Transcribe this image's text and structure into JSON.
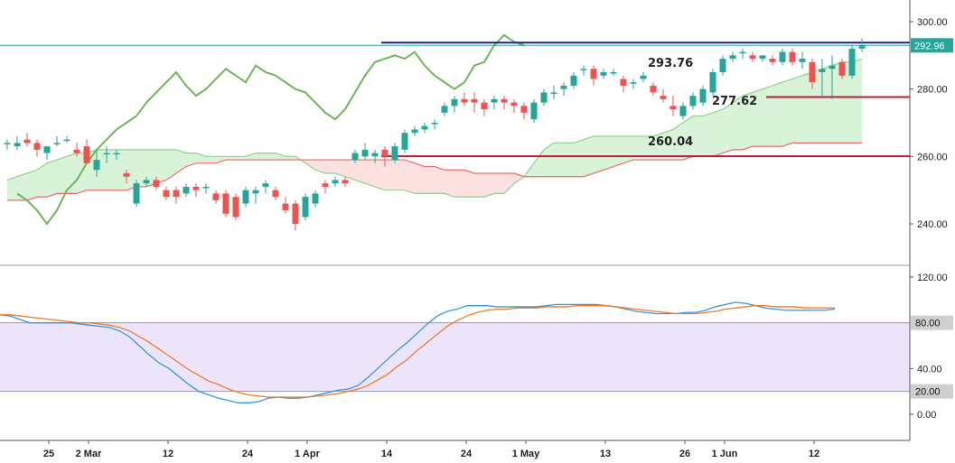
{
  "colors": {
    "up": "#26a69a",
    "down": "#ef5350",
    "leading_span_a": "#8fd18f",
    "leading_span_b": "#ef6b6b",
    "lagging_span": "#6fb55a",
    "cloud_bull": "#d8f3d8",
    "cloud_bear": "#fde0e0",
    "resistance": "#1a237e",
    "support": "#b71c3c",
    "price_tag": "#26a69a",
    "stoch_k": "#3399dd",
    "stoch_d": "#f07b2a",
    "stoch_band": "#ece4fb",
    "level_tag": "#cfcfcf"
  },
  "chart_data": [
    {
      "type": "candlestick",
      "title": "",
      "ylim": [
        230,
        305
      ],
      "yticks": [
        "300.00",
        "280.00",
        "260.00",
        "240.00"
      ],
      "ytick_values": [
        300,
        280,
        260,
        240
      ],
      "last_price_label": "292.96",
      "last_price": 292.96,
      "annotations": [
        {
          "label": "293.76",
          "value": 293.76
        },
        {
          "label": "277.62",
          "value": 277.62
        },
        {
          "label": "260.04",
          "value": 260.04
        }
      ],
      "x_labels": [
        {
          "label": "25",
          "index": 4
        },
        {
          "label": "2 Mar",
          "index": 8
        },
        {
          "label": "12",
          "index": 16
        },
        {
          "label": "24",
          "index": 24
        },
        {
          "label": "1 Apr",
          "index": 30
        },
        {
          "label": "14",
          "index": 38
        },
        {
          "label": "24",
          "index": 46
        },
        {
          "label": "1 May",
          "index": 52
        },
        {
          "label": "13",
          "index": 60
        },
        {
          "label": "26",
          "index": 68
        },
        {
          "label": "1 Jun",
          "index": 72
        },
        {
          "label": "12",
          "index": 81
        }
      ],
      "candles": [
        [
          264,
          265,
          262,
          264
        ],
        [
          263,
          266,
          262,
          264
        ],
        [
          265,
          267,
          263,
          264
        ],
        [
          264,
          265,
          260,
          262
        ],
        [
          261,
          263,
          259,
          263
        ],
        [
          264,
          266,
          263,
          264
        ],
        [
          265,
          266,
          264,
          265
        ],
        [
          262,
          264,
          260,
          261
        ],
        [
          263,
          265,
          258,
          258
        ],
        [
          256,
          262,
          254,
          259
        ],
        [
          261,
          263,
          258,
          261
        ],
        [
          261,
          262,
          259,
          261
        ],
        [
          255,
          256,
          252,
          254
        ],
        [
          246,
          253,
          245,
          252
        ],
        [
          252,
          254,
          251,
          253
        ],
        [
          253,
          254,
          250,
          251
        ],
        [
          250,
          251,
          247,
          248
        ],
        [
          250,
          251,
          246,
          248
        ],
        [
          249,
          252,
          248,
          251
        ],
        [
          251,
          252,
          248,
          250
        ],
        [
          251,
          252,
          249,
          251
        ],
        [
          249,
          250,
          246,
          247
        ],
        [
          249,
          250,
          242,
          243
        ],
        [
          248,
          249,
          241,
          242
        ],
        [
          246,
          251,
          245,
          250
        ],
        [
          249,
          251,
          246,
          250
        ],
        [
          251,
          253,
          249,
          252
        ],
        [
          250,
          251,
          247,
          248
        ],
        [
          246,
          248,
          243,
          244
        ],
        [
          246,
          247,
          238,
          240
        ],
        [
          242,
          249,
          241,
          248
        ],
        [
          246,
          250,
          245,
          249
        ],
        [
          252,
          253,
          249,
          251
        ],
        [
          252,
          254,
          251,
          253
        ],
        [
          253,
          254,
          251,
          252
        ],
        [
          259,
          262,
          258,
          261
        ],
        [
          260,
          264,
          259,
          262
        ],
        [
          260,
          262,
          258,
          261
        ],
        [
          262,
          263,
          257,
          260
        ],
        [
          259,
          264,
          258,
          263
        ],
        [
          262,
          268,
          261,
          267
        ],
        [
          267,
          269,
          266,
          268
        ],
        [
          268,
          270,
          267,
          269
        ],
        [
          270,
          271,
          268,
          270
        ],
        [
          273,
          276,
          272,
          275
        ],
        [
          275,
          278,
          273,
          277
        ],
        [
          277,
          279,
          275,
          276
        ],
        [
          277,
          279,
          273,
          276
        ],
        [
          276,
          277,
          272,
          274
        ],
        [
          276,
          278,
          274,
          277
        ],
        [
          277,
          278,
          274,
          276
        ],
        [
          276,
          277,
          273,
          275
        ],
        [
          275,
          276,
          271,
          273
        ],
        [
          271,
          277,
          270,
          276
        ],
        [
          276,
          280,
          275,
          279
        ],
        [
          279,
          281,
          277,
          279
        ],
        [
          280,
          282,
          278,
          281
        ],
        [
          281,
          285,
          280,
          284
        ],
        [
          286,
          287,
          284,
          286
        ],
        [
          286,
          287,
          281,
          283
        ],
        [
          284,
          286,
          283,
          285
        ],
        [
          285,
          286,
          284,
          285
        ],
        [
          283,
          284,
          279,
          281
        ],
        [
          282,
          283,
          280,
          282
        ],
        [
          283,
          285,
          282,
          284
        ],
        [
          281,
          282,
          278,
          279
        ],
        [
          278,
          280,
          276,
          277
        ],
        [
          275,
          278,
          272,
          274
        ],
        [
          272,
          276,
          271,
          275
        ],
        [
          275,
          279,
          274,
          278
        ],
        [
          276,
          281,
          275,
          280
        ],
        [
          279,
          286,
          278,
          285
        ],
        [
          285,
          290,
          284,
          289
        ],
        [
          289,
          291,
          288,
          290
        ],
        [
          291,
          292,
          289,
          291
        ],
        [
          290,
          291,
          288,
          289
        ],
        [
          289,
          290,
          288,
          290
        ],
        [
          289,
          290,
          287,
          288
        ],
        [
          288,
          292,
          287,
          291
        ],
        [
          291,
          292,
          287,
          288
        ],
        [
          288,
          291,
          286,
          289
        ],
        [
          288,
          289,
          280,
          282
        ],
        [
          285,
          289,
          278,
          286
        ],
        [
          286,
          290,
          277,
          287
        ],
        [
          288,
          289,
          283,
          284
        ],
        [
          284,
          293,
          283,
          292
        ],
        [
          292,
          295,
          291,
          293
        ]
      ],
      "lagging_span": [
        249,
        247,
        244,
        240,
        244,
        250,
        253,
        258,
        262,
        265,
        268,
        270,
        272,
        276,
        279,
        282,
        285,
        281,
        278,
        280,
        283,
        286,
        284,
        282,
        287,
        285,
        284,
        282,
        280,
        279,
        276,
        273,
        271,
        274,
        279,
        284,
        288,
        289,
        290,
        289,
        291,
        287,
        284,
        282,
        280,
        282,
        287,
        288,
        293,
        296,
        294,
        293
      ],
      "leading_span_a": [
        253,
        254,
        255,
        256,
        258,
        259,
        260,
        261,
        261,
        262,
        262,
        262,
        262,
        262,
        262,
        262,
        262,
        262,
        261,
        261,
        260,
        260,
        260,
        260,
        260,
        261,
        261,
        261,
        260,
        260,
        258,
        256,
        255,
        255,
        254,
        253,
        252,
        251,
        250,
        250,
        250,
        249,
        249,
        249,
        249,
        248,
        248,
        248,
        248,
        249,
        249,
        252,
        254,
        258,
        262,
        264,
        264,
        264,
        265,
        266,
        266,
        266,
        266,
        266,
        266,
        266,
        267,
        268,
        270,
        272,
        272,
        273,
        274,
        276,
        278,
        279,
        280,
        281,
        282,
        283,
        284,
        285,
        286,
        287,
        288,
        288,
        289
      ],
      "leading_span_b": [
        247,
        247,
        247,
        248,
        248,
        249,
        249,
        249,
        250,
        250,
        250,
        250,
        250,
        251,
        251,
        252,
        253,
        255,
        257,
        258,
        258,
        258,
        259,
        259,
        259,
        259,
        259,
        259,
        259,
        259,
        259,
        259,
        259,
        259,
        259,
        259,
        259,
        259,
        259,
        259,
        259,
        258,
        257,
        257,
        256,
        256,
        256,
        255,
        255,
        255,
        255,
        255,
        254,
        254,
        254,
        254,
        254,
        254,
        254,
        255,
        256,
        257,
        258,
        259,
        259,
        259,
        259,
        259,
        259,
        260,
        260,
        260,
        261,
        262,
        262,
        263,
        263,
        263,
        263,
        264,
        264,
        264,
        264,
        264,
        264,
        264,
        264
      ]
    },
    {
      "type": "line",
      "title": "",
      "ylim": [
        -20,
        128
      ],
      "yticks": [
        "120.00",
        "40.00",
        "0.00"
      ],
      "ytick_values": [
        120,
        40,
        0
      ],
      "band": [
        20,
        80
      ],
      "band_labels": [
        "80.00",
        "20.00"
      ],
      "series": [
        {
          "key": "k",
          "values": [
            87,
            86,
            83,
            80,
            80,
            80,
            80,
            80,
            79,
            78,
            77,
            76,
            73,
            68,
            60,
            52,
            45,
            40,
            33,
            26,
            20,
            17,
            14,
            12,
            10,
            10,
            11,
            14,
            15,
            14,
            14,
            15,
            17,
            19,
            21,
            22,
            25,
            32,
            40,
            48,
            56,
            63,
            71,
            79,
            86,
            90,
            92,
            95,
            95,
            95,
            94,
            94,
            94,
            94,
            94,
            95,
            96,
            96,
            96,
            96,
            96,
            95,
            94,
            92,
            90,
            89,
            88,
            88,
            88,
            89,
            89,
            91,
            94,
            96,
            98,
            97,
            95,
            93,
            92,
            91,
            91,
            91,
            91,
            91,
            92
          ]
        },
        {
          "key": "d",
          "values": [
            87,
            87,
            86,
            85,
            84,
            83,
            82,
            81,
            80,
            80,
            79,
            78,
            76,
            73,
            68,
            63,
            57,
            51,
            45,
            39,
            34,
            29,
            26,
            22,
            19,
            17,
            16,
            15,
            15,
            15,
            15,
            15,
            16,
            17,
            18,
            20,
            22,
            25,
            30,
            35,
            42,
            48,
            56,
            63,
            70,
            77,
            82,
            86,
            89,
            91,
            92,
            92,
            93,
            93,
            93,
            94,
            94,
            94,
            95,
            95,
            95,
            95,
            94,
            93,
            92,
            91,
            90,
            89,
            88,
            88,
            88,
            89,
            90,
            92,
            93,
            94,
            95,
            95,
            94,
            94,
            94,
            93,
            93,
            93,
            93
          ]
        }
      ]
    }
  ]
}
